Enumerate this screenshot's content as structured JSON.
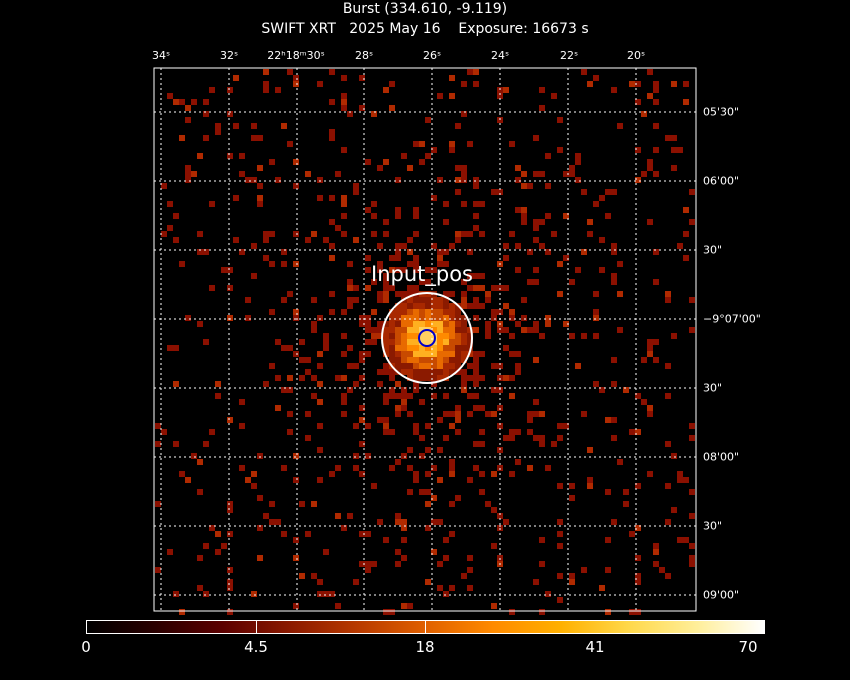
{
  "header": {
    "title": "Burst (334.610, -9.119)",
    "subtitle": "SWIFT XRT   2025 May 16    Exposure: 16673 s"
  },
  "axes": {
    "ra_ticks": [
      "34ˢ",
      "32ˢ",
      "22ʰ18ᵐ30ˢ",
      "28ˢ",
      "26ˢ",
      "24ˢ",
      "22ˢ",
      "20ˢ"
    ],
    "dec_ticks": [
      "05'30\"",
      "06'00\"",
      "30\"",
      "−9°07'00\"",
      "30\"",
      "08'00\"",
      "30\"",
      "09'00\""
    ]
  },
  "source": {
    "label": "Input_pos"
  },
  "colorbar": {
    "labels": [
      "0",
      "4.5",
      "18",
      "41",
      "70"
    ]
  },
  "colors": {
    "background": "#000000",
    "grid": "#ffffff",
    "source_circle": "#ffffff",
    "inner_circle": "#0000c8",
    "counts_low": "#8b1000",
    "counts_high": "#ffd060"
  }
}
